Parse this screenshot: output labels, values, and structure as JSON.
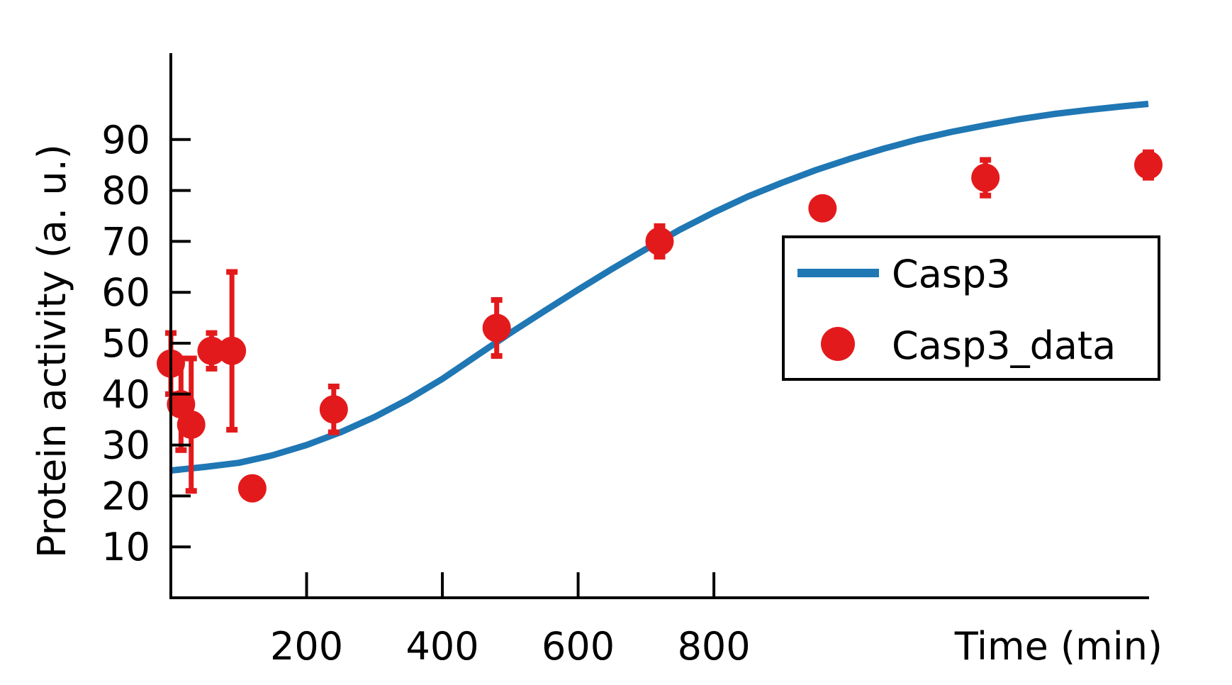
{
  "chart_data": {
    "type": "scatter",
    "xlabel": "Time (min)",
    "ylabel": "Protein activity (a. u.)",
    "xlim": [
      0,
      1440
    ],
    "ylim": [
      0,
      100
    ],
    "xticks": [
      200,
      400,
      600,
      800
    ],
    "yticks": [
      10,
      20,
      30,
      40,
      50,
      60,
      70,
      80,
      90
    ],
    "grid": false,
    "legend_position": "right",
    "series": [
      {
        "name": "Casp3",
        "kind": "line",
        "color": "#1f77b4",
        "x": [
          0,
          50,
          100,
          150,
          200,
          250,
          300,
          350,
          400,
          450,
          500,
          550,
          600,
          650,
          700,
          750,
          800,
          850,
          900,
          950,
          1000,
          1050,
          1100,
          1150,
          1200,
          1250,
          1300,
          1350,
          1400,
          1440
        ],
        "y": [
          25,
          25.7,
          26.5,
          28,
          30,
          32.5,
          35.5,
          39,
          43,
          47.5,
          52,
          56.3,
          60.5,
          64.6,
          68.5,
          72.3,
          75.7,
          78.8,
          81.5,
          84,
          86.2,
          88.2,
          90,
          91.5,
          92.8,
          94,
          95,
          95.8,
          96.5,
          97
        ]
      },
      {
        "name": "Casp3_data",
        "kind": "errorbar",
        "color": "#e31a1c",
        "points": [
          {
            "x": 0,
            "y": 46,
            "err": 6
          },
          {
            "x": 15,
            "y": 38,
            "err": 9
          },
          {
            "x": 30,
            "y": 34,
            "err": 13
          },
          {
            "x": 60,
            "y": 48.5,
            "err": 3.5
          },
          {
            "x": 90,
            "y": 48.5,
            "err": 15.5
          },
          {
            "x": 120,
            "y": 21.5,
            "err": 2
          },
          {
            "x": 240,
            "y": 37,
            "err": 4.5
          },
          {
            "x": 480,
            "y": 53,
            "err": 5.5
          },
          {
            "x": 720,
            "y": 70,
            "err": 3
          },
          {
            "x": 960,
            "y": 76.5,
            "err": 2
          },
          {
            "x": 1200,
            "y": 82.5,
            "err": 3.5
          },
          {
            "x": 1440,
            "y": 85,
            "err": 2.5
          }
        ]
      }
    ]
  }
}
